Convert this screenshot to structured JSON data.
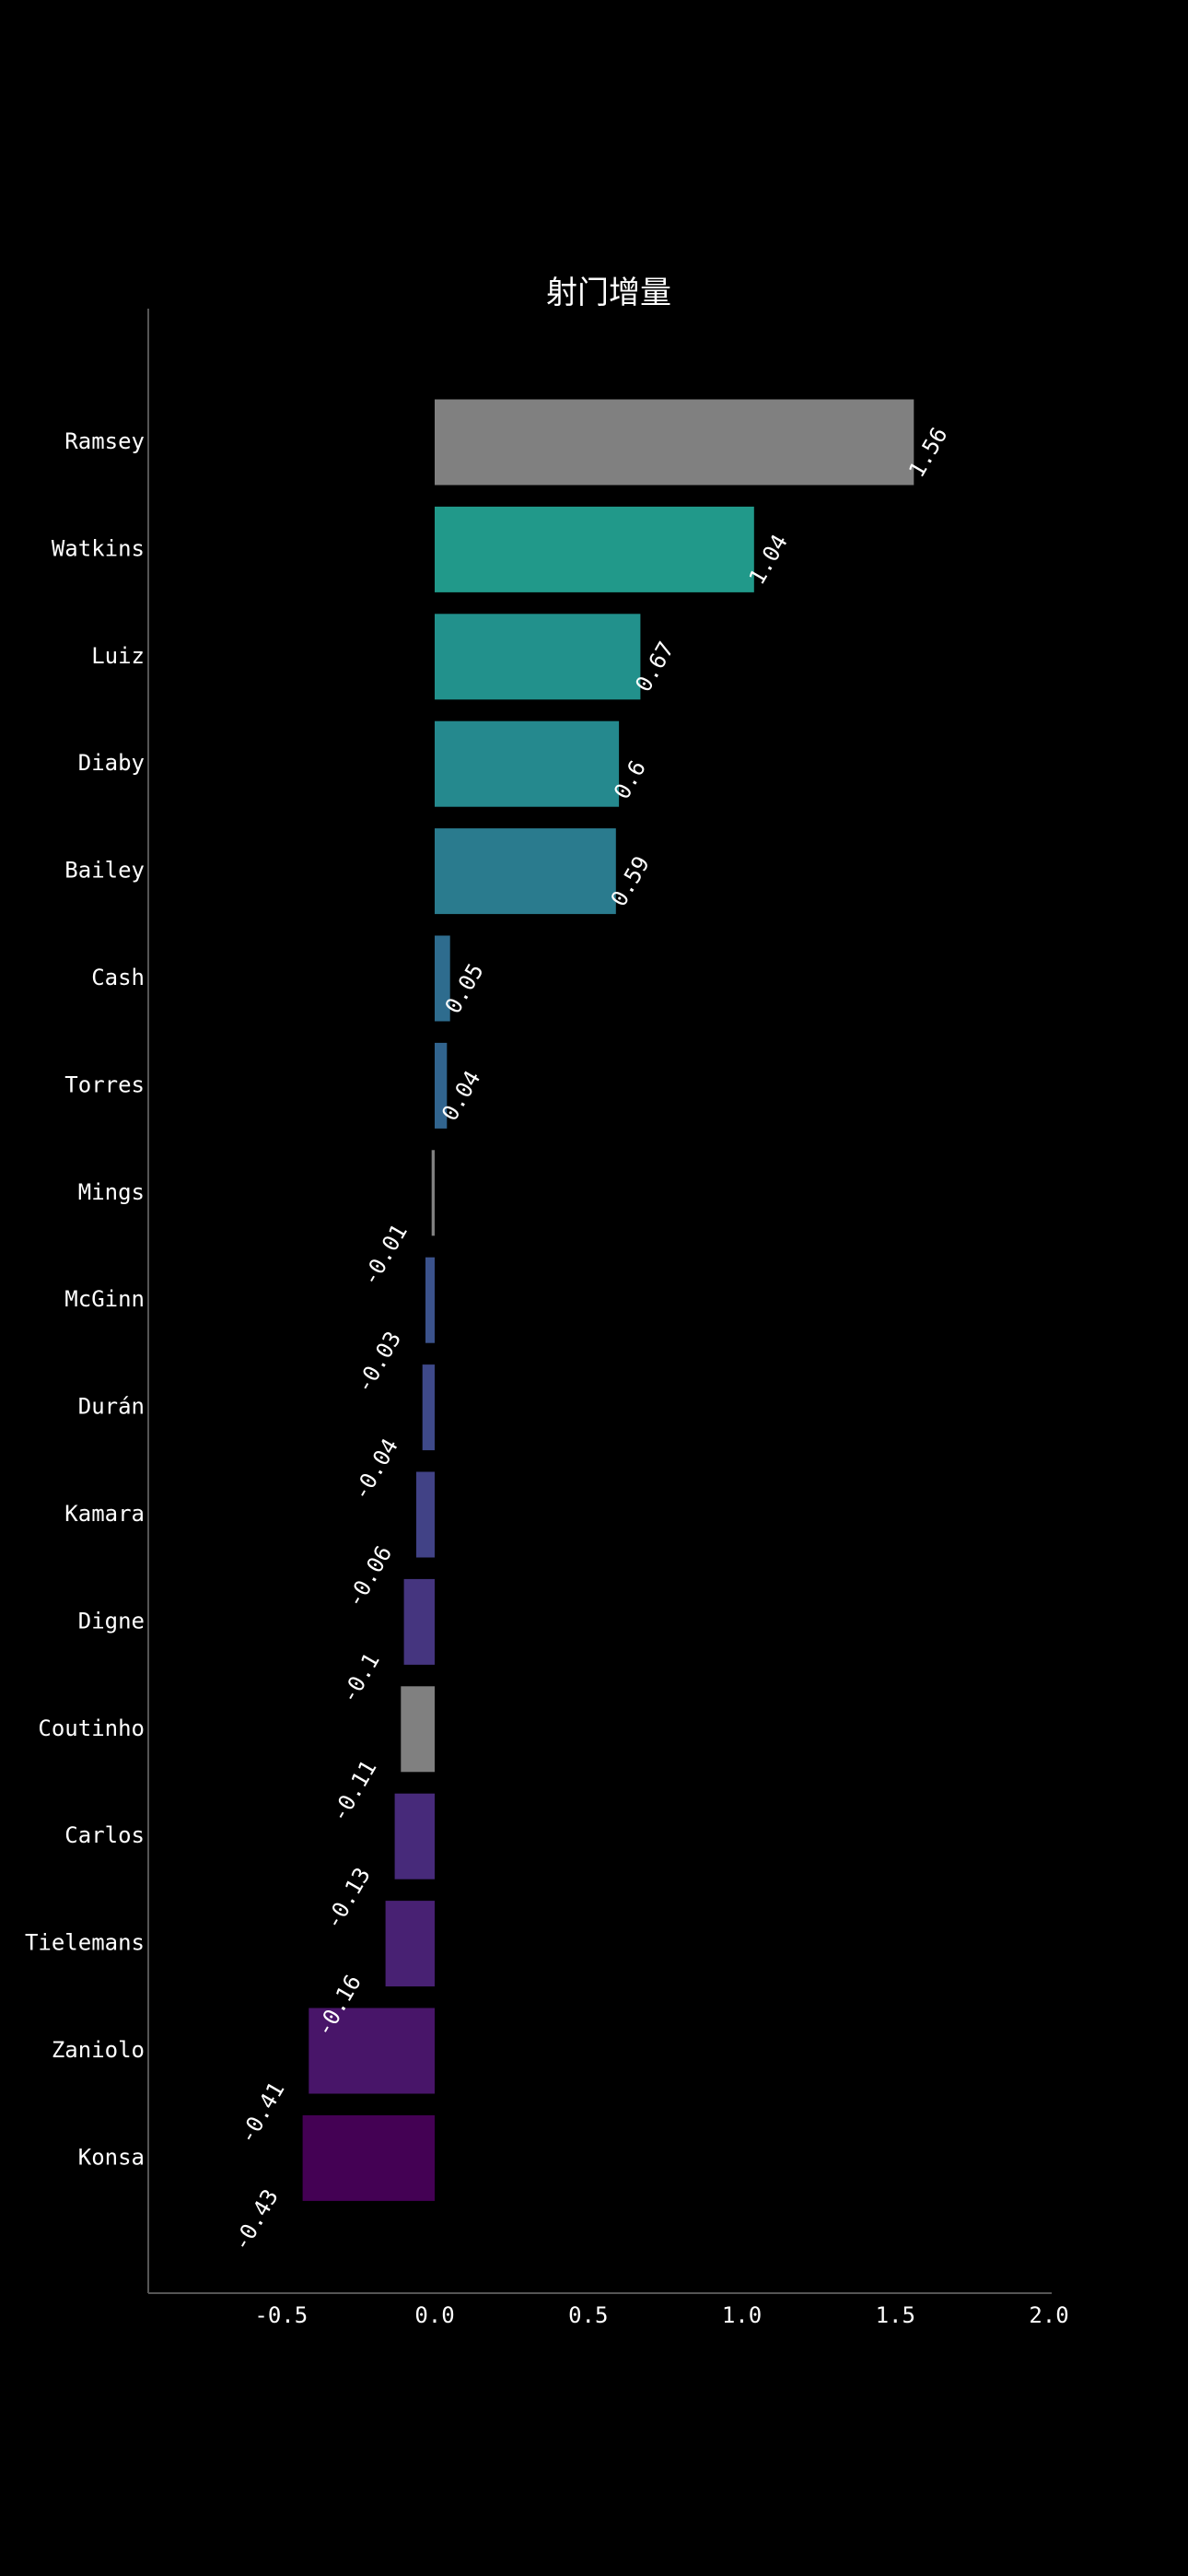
{
  "chart_data": {
    "type": "bar",
    "orientation": "horizontal",
    "title": "射门增量",
    "xlabel": "",
    "ylabel": "",
    "xlim": [
      -0.93,
      2.0
    ],
    "xticks": [
      -0.5,
      0.0,
      0.5,
      1.0,
      1.5,
      2.0
    ],
    "xtick_labels": [
      "-0.5",
      "0.0",
      "0.5",
      "1.0",
      "1.5",
      "2.0"
    ],
    "grid": false,
    "categories": [
      "Ramsey",
      "Watkins",
      "Luiz",
      "Diaby",
      "Bailey",
      "Cash",
      "Torres",
      "Mings",
      "McGinn",
      "Durán",
      "Kamara",
      "Digne",
      "Coutinho",
      "Carlos",
      "Tielemans",
      "Zaniolo",
      "Konsa"
    ],
    "values": [
      1.56,
      1.04,
      0.67,
      0.6,
      0.59,
      0.05,
      0.04,
      -0.01,
      -0.03,
      -0.04,
      -0.06,
      -0.1,
      -0.11,
      -0.13,
      -0.16,
      -0.41,
      -0.43
    ],
    "value_labels": [
      "1.56",
      "1.04",
      "0.67",
      "0.6",
      "0.59",
      "0.05",
      "0.04",
      "-0.01",
      "-0.03",
      "-0.04",
      "-0.06",
      "-0.1",
      "-0.11",
      "-0.13",
      "-0.16",
      "-0.41",
      "-0.43"
    ],
    "colors": [
      "#808080",
      "#21998a",
      "#22918c",
      "#25898e",
      "#2a7b8e",
      "#2e6c8e",
      "#31648e",
      "#808080",
      "#3b528b",
      "#3e4989",
      "#414286",
      "#45357f",
      "#808080",
      "#472a7a",
      "#482173",
      "#481569",
      "#440154"
    ]
  }
}
